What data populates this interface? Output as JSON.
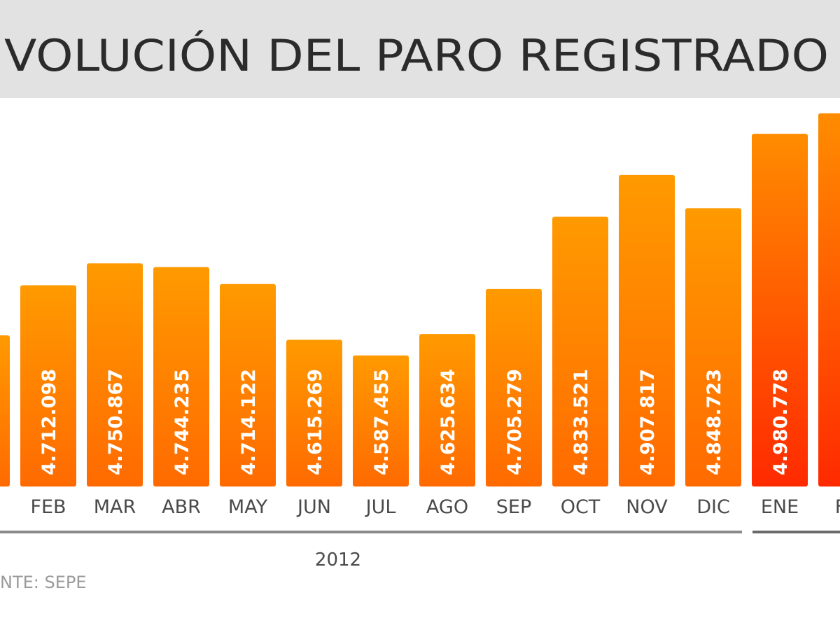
{
  "chart_data": {
    "type": "bar",
    "title": "VOLUCIÓN DEL PARO REGISTRADO",
    "categories": [
      null,
      "FEB",
      "MAR",
      "ABR",
      "MAY",
      "JUN",
      "JUL",
      "AGO",
      "SEP",
      "OCT",
      "NOV",
      "DIC",
      "ENE",
      "FE"
    ],
    "values": [
      4623000,
      4712098,
      4750867,
      4744235,
      4714122,
      4615269,
      4587455,
      4625634,
      4705279,
      4833521,
      4907817,
      4848723,
      4980778,
      5017000
    ],
    "value_labels": [
      null,
      "4.712.098",
      "4.750.867",
      "4.744.235",
      "4.714.122",
      "4.615.269",
      "4.587.455",
      "4.625.634",
      "4.705.279",
      "4.833.521",
      "4.907.817",
      "4.848.723",
      "4.980.778",
      null
    ],
    "bar_colors": [
      [
        "#ff9a00",
        "#ff6a00"
      ],
      [
        "#ff9a00",
        "#ff6a00"
      ],
      [
        "#ff9a00",
        "#ff6a00"
      ],
      [
        "#ff9a00",
        "#ff6a00"
      ],
      [
        "#ff9a00",
        "#ff6a00"
      ],
      [
        "#ff9a00",
        "#ff6a00"
      ],
      [
        "#ff9a00",
        "#ff6a00"
      ],
      [
        "#ff9a00",
        "#ff6a00"
      ],
      [
        "#ff9a00",
        "#ff6a00"
      ],
      [
        "#ff9a00",
        "#ff6a00"
      ],
      [
        "#ff9a00",
        "#ff6a00"
      ],
      [
        "#ff9a00",
        "#ff6a00"
      ],
      [
        "#ff8c00",
        "#ff2a00"
      ],
      [
        "#ff8c00",
        "#ff2a00"
      ]
    ],
    "ylim": [
      4355000,
      5038000
    ],
    "group_label": "2012",
    "source": "NTE: SEPE"
  }
}
